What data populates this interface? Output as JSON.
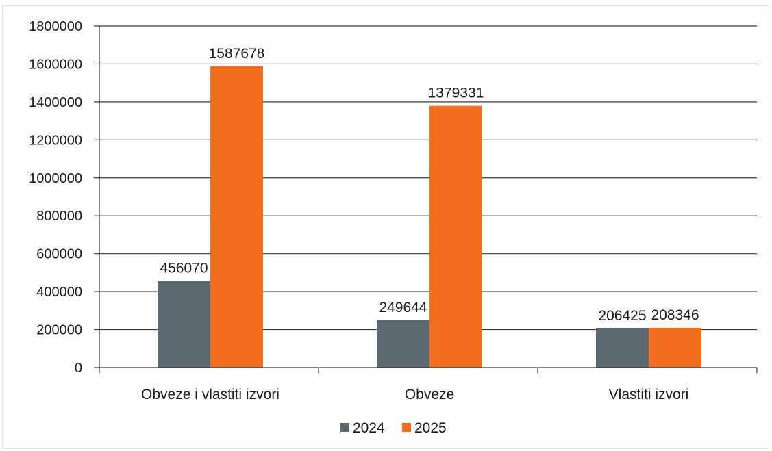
{
  "chart_data": {
    "type": "bar",
    "categories": [
      "Obveze i vlastiti izvori",
      "Obveze",
      "Vlastiti izvori"
    ],
    "series": [
      {
        "name": "2024",
        "values": [
          456070,
          249644,
          206425
        ],
        "color": "#5a6970"
      },
      {
        "name": "2025",
        "values": [
          1587678,
          1379331,
          208346
        ],
        "color": "#f36f1f"
      }
    ],
    "ylim": [
      0,
      1800000
    ],
    "yticks": [
      "0",
      "200000",
      "400000",
      "600000",
      "800000",
      "1000000",
      "1200000",
      "1400000",
      "1600000",
      "1800000"
    ],
    "grid": true,
    "legend_position": "bottom",
    "data_labels": true
  }
}
